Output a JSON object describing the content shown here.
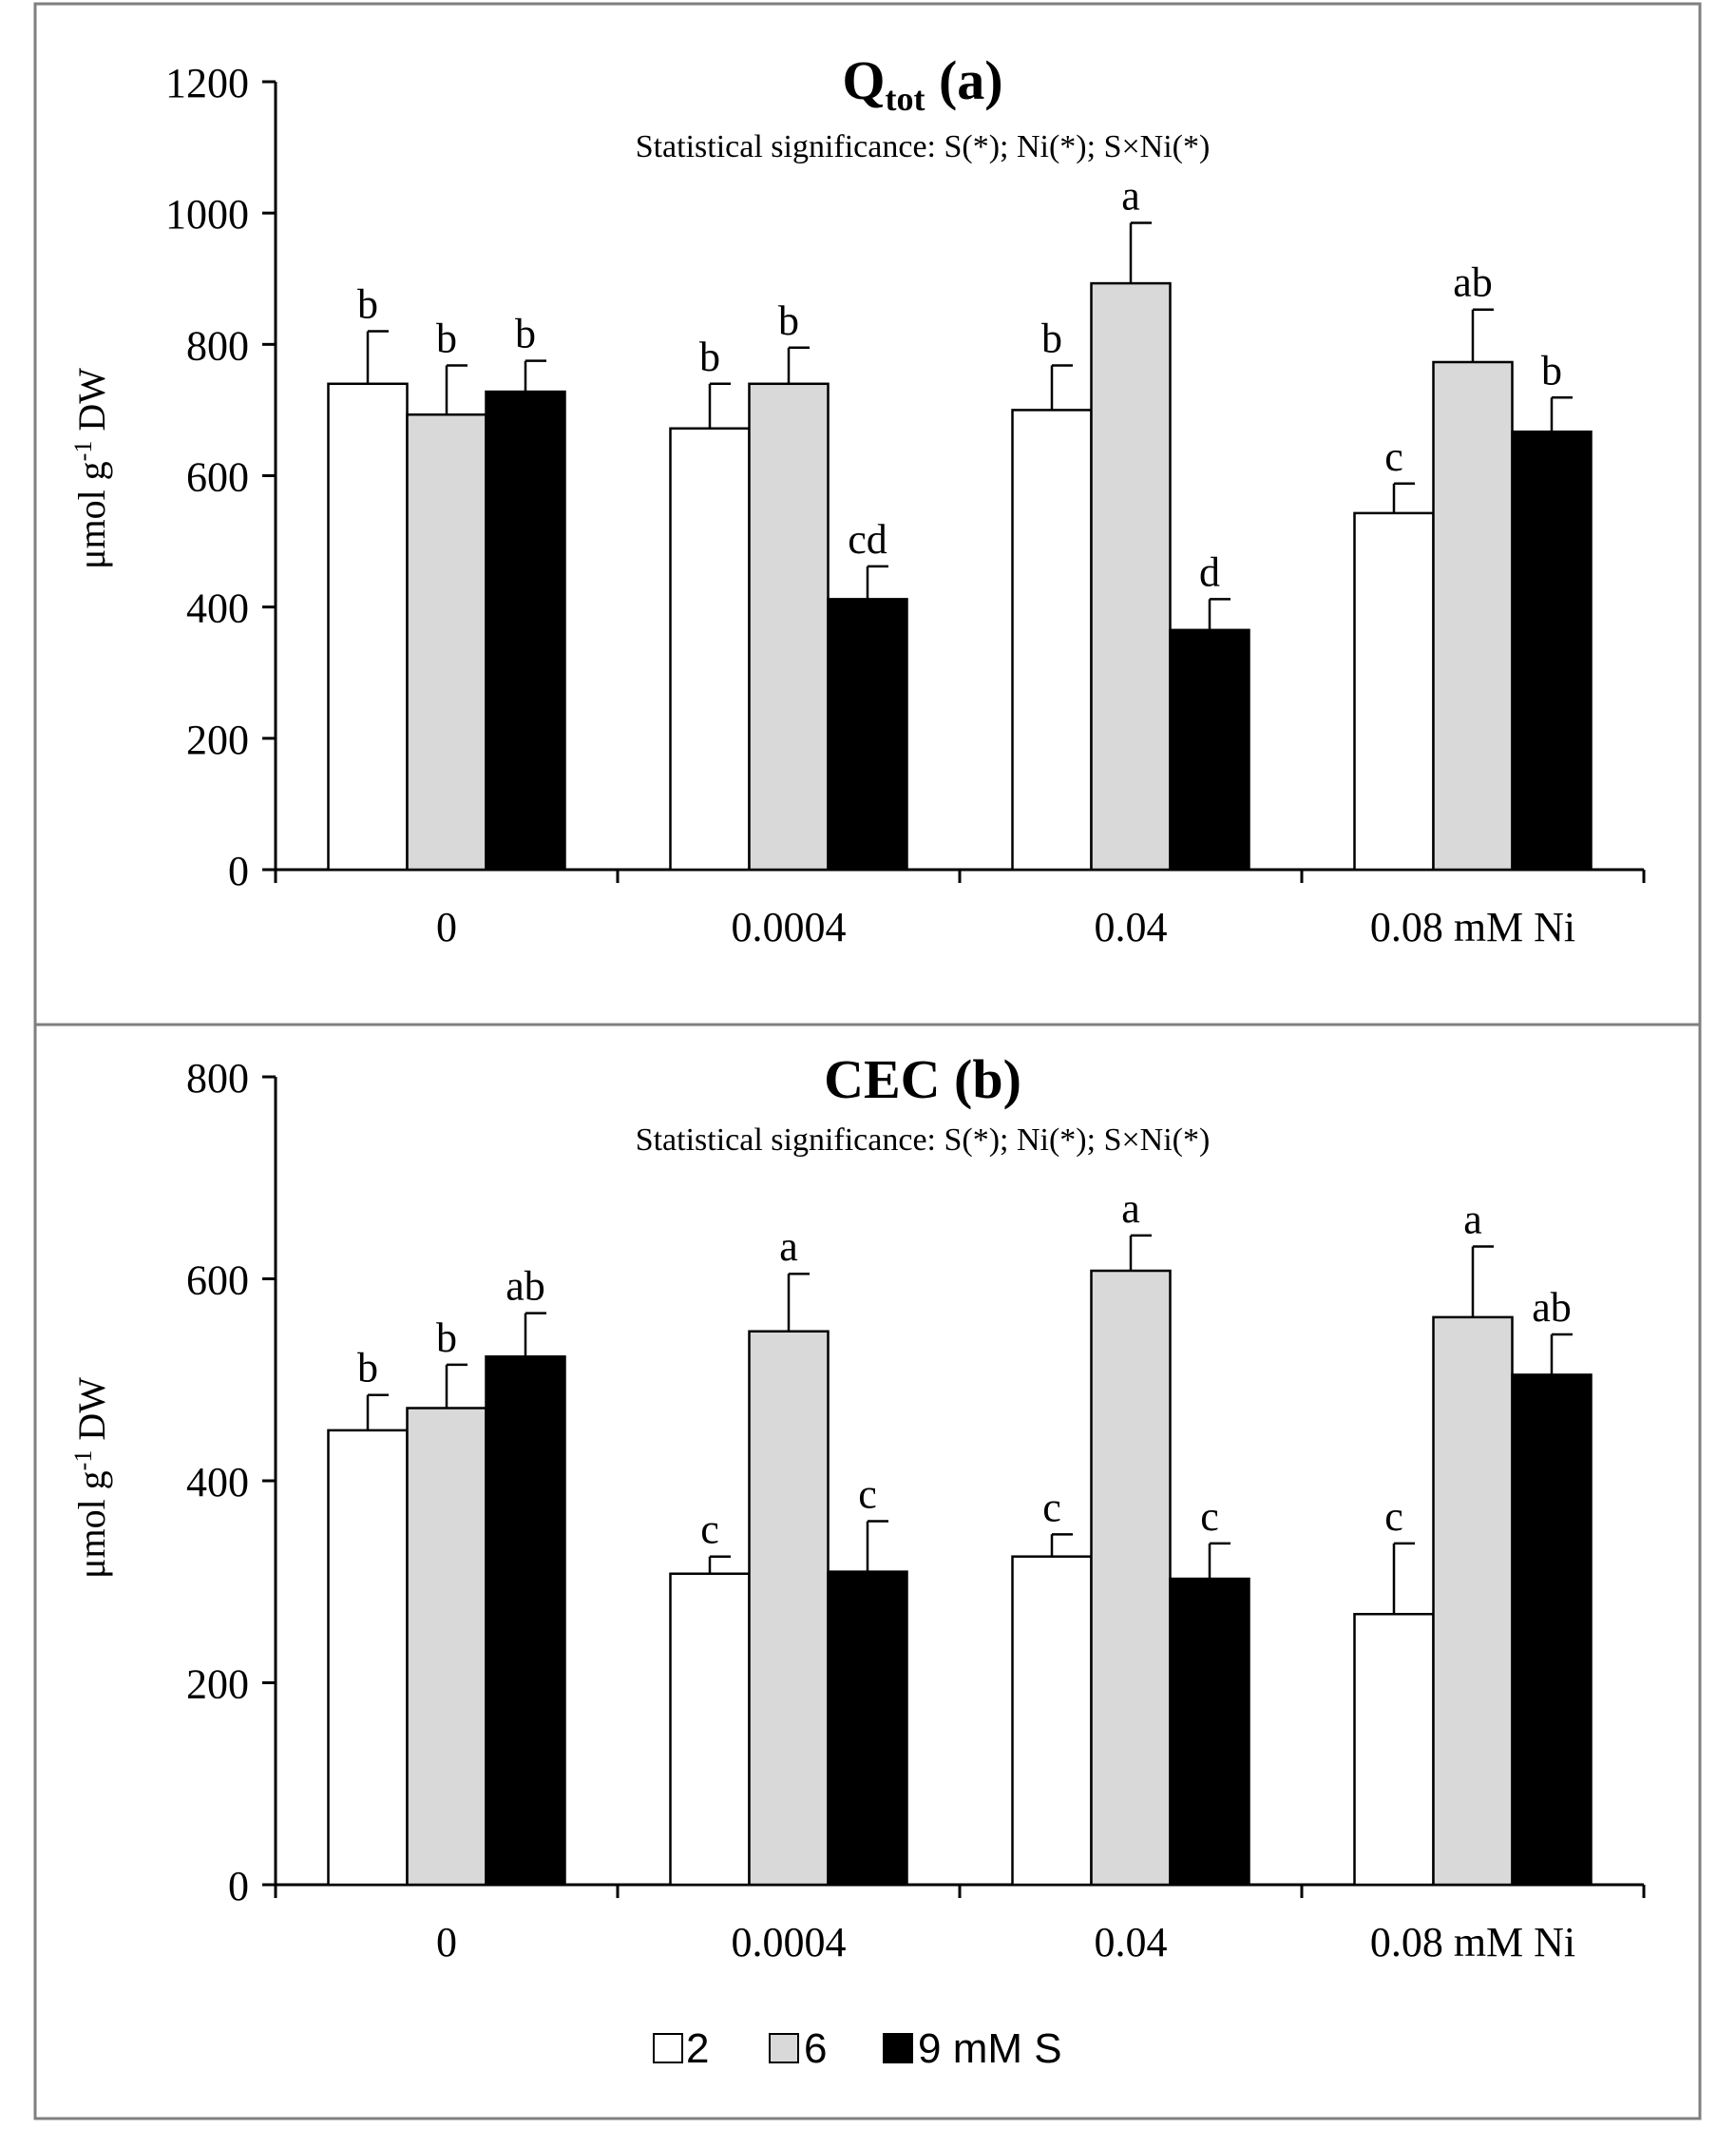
{
  "chart_data": [
    {
      "type": "bar",
      "title": "Q",
      "title_subscript": "tot",
      "title_suffix": "(a)",
      "subtitle": "Statistical significance: S(*); Ni(*); S×Ni(*)",
      "ylabel_prefix": "μmol g",
      "ylabel_sup": "-1",
      "ylabel_suffix": "DW",
      "ylim": [
        0,
        1200
      ],
      "yticks": [
        0,
        200,
        400,
        600,
        800,
        1000,
        1200
      ],
      "categories": [
        "0",
        "0.0004",
        "0.04",
        "0.08 mM Ni"
      ],
      "series": [
        {
          "name": "2",
          "values": [
            740,
            672,
            700,
            543
          ],
          "errors": [
            80,
            68,
            68,
            45
          ],
          "letters": [
            "b",
            "b",
            "b",
            "c"
          ]
        },
        {
          "name": "6",
          "values": [
            693,
            740,
            893,
            773
          ],
          "errors": [
            75,
            55,
            92,
            80
          ],
          "letters": [
            "b",
            "b",
            "a",
            "ab"
          ]
        },
        {
          "name": "9",
          "values": [
            728,
            412,
            365,
            667
          ],
          "errors": [
            47,
            50,
            47,
            52
          ],
          "letters": [
            "b",
            "cd",
            "d",
            "b"
          ]
        }
      ]
    },
    {
      "type": "bar",
      "title": "CEC (b)",
      "subtitle": "Statistical significance: S(*); Ni(*); S×Ni(*)",
      "ylabel_prefix": "μmol g",
      "ylabel_sup": "-1",
      "ylabel_suffix": "DW",
      "ylim": [
        0,
        800
      ],
      "yticks": [
        0,
        200,
        400,
        600,
        800
      ],
      "categories": [
        "0",
        "0.0004",
        "0.04",
        "0.08 mM Ni"
      ],
      "series": [
        {
          "name": "2",
          "values": [
            450,
            308,
            325,
            268
          ],
          "errors": [
            35,
            17,
            22,
            70
          ],
          "letters": [
            "b",
            "c",
            "c",
            "c"
          ]
        },
        {
          "name": "6",
          "values": [
            472,
            548,
            608,
            562
          ],
          "errors": [
            43,
            57,
            35,
            70
          ],
          "letters": [
            "b",
            "a",
            "a",
            "a"
          ]
        },
        {
          "name": "9",
          "values": [
            523,
            310,
            303,
            505
          ],
          "errors": [
            43,
            50,
            35,
            40
          ],
          "letters": [
            "ab",
            "c",
            "c",
            "ab"
          ]
        }
      ]
    }
  ],
  "legend": {
    "items": [
      "2",
      "6",
      "9 mM S"
    ],
    "colors": [
      "#ffffff",
      "#d9d9d9",
      "#000000"
    ]
  },
  "style": {
    "bar_colors": [
      "#ffffff",
      "#d9d9d9",
      "#000000"
    ],
    "frame_color": "#7f7f7f",
    "ink": "#000000"
  }
}
